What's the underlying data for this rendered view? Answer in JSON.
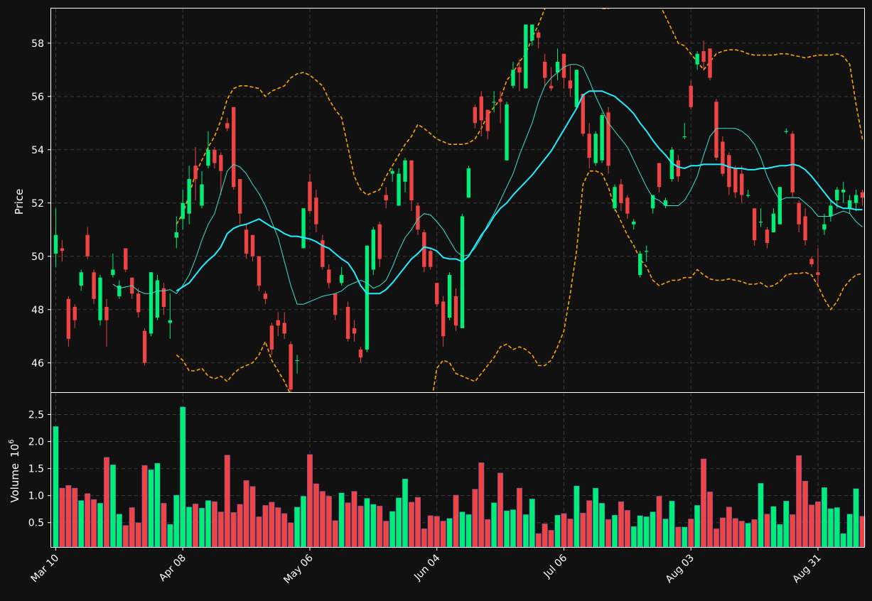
{
  "colors": {
    "background": "#111111",
    "up": "#00ee77",
    "down": "#ee4444",
    "sma_fast": "#40e0d0",
    "sma_slow": "#22eeff",
    "bollinger": "#ffa500",
    "grid": "#3a3a3a",
    "axis": "#ffffff"
  },
  "chart_data": {
    "type": "candlestick",
    "title": "",
    "price_axis": {
      "ylabel": "Price",
      "ylim": [
        44.9,
        59.3
      ],
      "yticks": [
        46,
        48,
        50,
        52,
        54,
        56,
        58
      ],
      "ytick_labels": [
        "46",
        "48",
        "50",
        "52",
        "54",
        "56",
        "58"
      ]
    },
    "volume_axis": {
      "ylabel": "Volume",
      "unit_label": "10",
      "unit_exponent": "6",
      "ylim": [
        0.05,
        2.9
      ],
      "yticks": [
        0.5,
        1.0,
        1.5,
        2.0,
        2.5
      ],
      "ytick_labels": [
        "0.5",
        "1.0",
        "1.5",
        "2.0",
        "2.5"
      ]
    },
    "x_axis": {
      "bar_count": 128,
      "tick_indices": [
        0,
        20,
        40,
        60,
        80,
        100,
        120
      ],
      "tick_labels": [
        "Mar 10",
        "Apr 08",
        "May 06",
        "Jun 04",
        "Jul 06",
        "Aug 03",
        "Aug 31"
      ]
    },
    "grid": true,
    "candles": [
      [
        50.1,
        50.8,
        51.8,
        49.6
      ],
      [
        50.3,
        50.2,
        50.6,
        49.8
      ],
      [
        48.4,
        46.9,
        48.5,
        46.6
      ],
      [
        48.1,
        47.6,
        48.2,
        47.3
      ],
      [
        48.9,
        49.4,
        49.5,
        48.7
      ],
      [
        50.8,
        50.0,
        51.1,
        49.9
      ],
      [
        49.4,
        48.4,
        49.5,
        48.2
      ],
      [
        47.6,
        49.2,
        49.3,
        47.4
      ],
      [
        48.1,
        47.6,
        48.4,
        46.6
      ],
      [
        49.3,
        49.5,
        50.1,
        49.2
      ],
      [
        48.5,
        48.9,
        49.1,
        48.4
      ],
      [
        50.3,
        49.5,
        50.3,
        49.4
      ],
      [
        49.2,
        48.6,
        49.2,
        48.4
      ],
      [
        48.6,
        47.9,
        48.8,
        47.7
      ],
      [
        47.2,
        46.0,
        47.3,
        45.9
      ],
      [
        47.1,
        49.4,
        49.4,
        47.0
      ],
      [
        47.7,
        49.1,
        49.3,
        47.6
      ],
      [
        48.8,
        48.1,
        49.0,
        47.8
      ],
      [
        47.5,
        47.6,
        48.6,
        46.9
      ],
      [
        50.7,
        50.9,
        51.5,
        50.3
      ],
      [
        51.4,
        52.0,
        52.5,
        51.0
      ],
      [
        51.6,
        52.9,
        53.4,
        51.2
      ],
      [
        53.4,
        52.9,
        54.1,
        52.1
      ],
      [
        51.9,
        52.7,
        53.2,
        51.8
      ],
      [
        53.4,
        54.0,
        54.7,
        53.3
      ],
      [
        54.0,
        53.5,
        54.1,
        53.3
      ],
      [
        53.8,
        53.2,
        53.9,
        52.3
      ],
      [
        55.0,
        54.8,
        55.2,
        54.7
      ],
      [
        55.6,
        52.6,
        55.6,
        52.5
      ],
      [
        52.9,
        51.6,
        52.9,
        51.2
      ],
      [
        51.0,
        50.1,
        51.2,
        49.9
      ],
      [
        50.8,
        50.0,
        50.8,
        49.8
      ],
      [
        50.0,
        48.9,
        50.0,
        48.7
      ],
      [
        48.6,
        48.4,
        48.7,
        48.2
      ],
      [
        47.4,
        46.5,
        47.5,
        46.3
      ],
      [
        47.6,
        47.4,
        47.9,
        47.0
      ],
      [
        47.5,
        47.1,
        47.9,
        46.9
      ],
      [
        46.7,
        45.0,
        46.8,
        44.6
      ],
      [
        46.1,
        46.1,
        46.3,
        45.6
      ],
      [
        50.3,
        51.8,
        51.8,
        50.3
      ],
      [
        52.8,
        51.7,
        53.1,
        51.6
      ],
      [
        52.2,
        51.2,
        52.5,
        50.9
      ],
      [
        50.6,
        49.6,
        50.8,
        49.5
      ],
      [
        49.5,
        49.0,
        49.7,
        48.8
      ],
      [
        48.6,
        47.8,
        48.6,
        47.6
      ],
      [
        49.0,
        49.3,
        49.6,
        48.9
      ],
      [
        48.1,
        46.9,
        48.3,
        46.8
      ],
      [
        47.3,
        47.1,
        47.6,
        46.8
      ],
      [
        46.5,
        46.2,
        46.6,
        46.0
      ],
      [
        46.5,
        50.4,
        50.4,
        46.4
      ],
      [
        49.5,
        51.0,
        51.1,
        49.3
      ],
      [
        51.2,
        49.9,
        51.3,
        49.6
      ],
      [
        52.3,
        52.1,
        52.6,
        51.8
      ],
      [
        53.1,
        53.2,
        53.3,
        52.8
      ],
      [
        51.9,
        53.1,
        53.3,
        51.9
      ],
      [
        52.8,
        53.6,
        53.7,
        52.4
      ],
      [
        53.6,
        52.1,
        53.6,
        51.7
      ],
      [
        51.9,
        51.0,
        52.0,
        50.8
      ],
      [
        50.9,
        49.6,
        51.0,
        49.4
      ],
      [
        50.2,
        49.6,
        50.3,
        49.5
      ],
      [
        49.0,
        48.2,
        49.0,
        48.1
      ],
      [
        48.3,
        47.0,
        48.5,
        46.6
      ],
      [
        47.7,
        49.3,
        49.4,
        47.6
      ],
      [
        48.5,
        47.4,
        48.8,
        47.2
      ],
      [
        47.3,
        51.5,
        51.6,
        47.3
      ],
      [
        52.2,
        53.3,
        53.4,
        52.2
      ],
      [
        55.6,
        55.0,
        55.7,
        54.8
      ],
      [
        56.0,
        55.1,
        56.2,
        54.5
      ],
      [
        55.5,
        54.7,
        55.5,
        54.4
      ],
      [
        55.8,
        55.8,
        56.2,
        55.4
      ],
      [
        55.9,
        55.8,
        56.2,
        55.0
      ],
      [
        53.6,
        55.7,
        55.8,
        53.6
      ],
      [
        56.4,
        57.0,
        57.3,
        56.3
      ],
      [
        57.1,
        56.9,
        57.4,
        56.2
      ],
      [
        56.3,
        58.7,
        58.7,
        56.3
      ],
      [
        58.1,
        58.7,
        58.7,
        57.9
      ],
      [
        58.4,
        58.2,
        58.5,
        57.8
      ],
      [
        57.3,
        56.7,
        57.6,
        56.4
      ],
      [
        56.4,
        56.3,
        57.1,
        56.2
      ],
      [
        56.9,
        57.3,
        57.8,
        56.6
      ],
      [
        57.6,
        56.7,
        57.6,
        56.3
      ],
      [
        56.6,
        56.3,
        57.2,
        56.0
      ],
      [
        55.6,
        57.0,
        57.0,
        55.5
      ],
      [
        56.1,
        54.6,
        56.1,
        54.5
      ],
      [
        54.6,
        53.7,
        55.0,
        53.3
      ],
      [
        53.5,
        54.6,
        54.7,
        53.4
      ],
      [
        53.6,
        55.3,
        55.4,
        53.5
      ],
      [
        55.4,
        53.4,
        55.6,
        53.1
      ],
      [
        51.8,
        52.6,
        52.7,
        51.7
      ],
      [
        52.7,
        52.0,
        52.9,
        51.7
      ],
      [
        52.2,
        51.6,
        52.3,
        51.4
      ],
      [
        51.2,
        51.3,
        51.4,
        51.0
      ],
      [
        49.3,
        50.1,
        50.2,
        49.2
      ],
      [
        50.2,
        50.2,
        50.4,
        49.8
      ],
      [
        51.8,
        52.3,
        52.3,
        51.6
      ],
      [
        53.5,
        52.6,
        53.5,
        52.4
      ],
      [
        51.9,
        52.1,
        52.2,
        51.8
      ],
      [
        52.9,
        54.0,
        54.1,
        52.8
      ],
      [
        53.6,
        53.0,
        53.8,
        52.8
      ],
      [
        54.5,
        54.5,
        55.0,
        54.4
      ],
      [
        56.4,
        55.6,
        56.6,
        55.5
      ],
      [
        57.2,
        57.6,
        57.7,
        57.0
      ],
      [
        57.7,
        57.3,
        58.1,
        57.0
      ],
      [
        57.8,
        56.7,
        57.8,
        56.6
      ],
      [
        55.8,
        53.7,
        55.9,
        53.6
      ],
      [
        54.3,
        53.1,
        54.5,
        53.0
      ],
      [
        53.8,
        52.6,
        53.9,
        52.3
      ],
      [
        53.3,
        52.4,
        53.4,
        52.2
      ],
      [
        53.1,
        52.3,
        53.4,
        52.0
      ],
      [
        52.3,
        52.3,
        52.5,
        52.2
      ],
      [
        51.8,
        50.6,
        51.8,
        50.4
      ],
      [
        51.3,
        51.3,
        51.8,
        51.1
      ],
      [
        51.0,
        50.5,
        51.1,
        50.3
      ],
      [
        50.9,
        51.6,
        51.8,
        50.9
      ],
      [
        51.2,
        52.6,
        52.6,
        51.2
      ],
      [
        54.7,
        54.7,
        54.8,
        54.6
      ],
      [
        54.6,
        52.4,
        54.7,
        52.2
      ],
      [
        52.0,
        51.2,
        52.1,
        50.9
      ],
      [
        51.5,
        50.6,
        51.8,
        50.4
      ],
      [
        49.9,
        49.7,
        50.0,
        49.6
      ],
      [
        49.4,
        49.3,
        50.3,
        48.9
      ],
      [
        51.0,
        51.2,
        51.6,
        50.8
      ],
      [
        51.5,
        51.9,
        52.1,
        51.3
      ],
      [
        52.1,
        52.5,
        52.6,
        51.8
      ],
      [
        52.4,
        52.5,
        52.8,
        52.0
      ],
      [
        51.8,
        52.1,
        52.3,
        51.6
      ],
      [
        52.0,
        52.3,
        52.5,
        51.7
      ],
      [
        52.4,
        52.2,
        52.5,
        51.9
      ]
    ],
    "volume": [
      2.28,
      1.14,
      1.19,
      1.14,
      0.91,
      1.04,
      0.93,
      0.86,
      1.71,
      1.57,
      0.66,
      0.45,
      0.78,
      0.5,
      1.56,
      1.48,
      1.6,
      0.86,
      0.47,
      1.01,
      2.64,
      0.79,
      0.85,
      0.77,
      0.91,
      0.89,
      0.7,
      1.75,
      0.69,
      0.84,
      1.28,
      1.17,
      0.61,
      0.82,
      0.88,
      0.78,
      0.67,
      0.5,
      0.79,
      0.99,
      1.76,
      1.22,
      1.08,
      0.99,
      0.54,
      1.05,
      0.87,
      1.08,
      0.81,
      0.95,
      0.84,
      0.81,
      0.53,
      0.71,
      0.96,
      1.31,
      0.88,
      0.97,
      0.39,
      0.63,
      0.62,
      0.53,
      0.58,
      1.01,
      0.7,
      0.65,
      1.12,
      1.61,
      0.56,
      0.87,
      1.42,
      0.72,
      0.74,
      1.14,
      0.65,
      0.94,
      0.3,
      0.48,
      0.36,
      0.64,
      0.67,
      0.57,
      1.18,
      0.68,
      0.91,
      1.14,
      0.86,
      0.56,
      0.64,
      0.89,
      0.73,
      0.43,
      0.63,
      0.61,
      0.7,
      0.99,
      0.57,
      0.9,
      0.42,
      0.42,
      0.57,
      0.82,
      1.68,
      1.07,
      0.39,
      0.59,
      0.79,
      0.58,
      0.53,
      0.49,
      0.56,
      1.23,
      0.66,
      0.8,
      0.47,
      0.9,
      0.65,
      1.74,
      1.27,
      0.83,
      0.89,
      1.15,
      0.76,
      0.78,
      0.3,
      0.66,
      1.13,
      0.62
    ],
    "sma_fast": [
      null,
      null,
      null,
      null,
      null,
      null,
      null,
      null,
      null,
      48.95,
      48.8,
      48.85,
      48.9,
      48.7,
      48.6,
      48.6,
      48.7,
      48.7,
      48.75,
      48.6,
      48.9,
      49.3,
      49.9,
      50.6,
      51.2,
      51.6,
      52.4,
      53.2,
      53.45,
      53.35,
      53.1,
      52.7,
      52.35,
      51.9,
      51.3,
      50.7,
      49.8,
      48.9,
      48.2,
      48.2,
      48.3,
      48.4,
      48.5,
      48.55,
      48.6,
      48.7,
      48.9,
      49.0,
      49.1,
      49.0,
      48.8,
      48.9,
      49.1,
      49.6,
      50.2,
      50.7,
      51.0,
      51.4,
      51.6,
      51.55,
      51.3,
      51.0,
      50.6,
      50.2,
      50.0,
      50.05,
      50.3,
      50.7,
      51.2,
      51.6,
      52.1,
      52.6,
      53.1,
      53.8,
      54.4,
      55.0,
      55.8,
      56.4,
      56.7,
      56.9,
      57.1,
      57.2,
      57.2,
      57.1,
      56.6,
      56.0,
      55.5,
      55.0,
      54.7,
      54.4,
      54.1,
      53.6,
      53.1,
      52.6,
      52.2,
      52.1,
      51.9,
      51.9,
      51.9,
      52.1,
      52.5,
      53.0,
      53.8,
      54.5,
      54.8,
      54.8,
      54.8,
      54.8,
      54.7,
      54.5,
      54.2,
      53.7,
      53.0,
      52.5,
      52.1,
      52.2,
      52.2,
      52.2,
      52.0,
      51.8,
      51.5,
      51.5,
      51.5,
      51.6,
      51.7,
      51.6,
      51.3,
      51.1
    ],
    "sma_slow": [
      null,
      null,
      null,
      null,
      null,
      null,
      null,
      null,
      null,
      null,
      null,
      null,
      null,
      null,
      null,
      null,
      null,
      null,
      null,
      48.7,
      48.85,
      49.0,
      49.3,
      49.6,
      49.85,
      50.05,
      50.35,
      50.85,
      51.05,
      51.15,
      51.2,
      51.3,
      51.4,
      51.25,
      51.1,
      51.0,
      50.85,
      50.75,
      50.75,
      50.7,
      50.65,
      50.55,
      50.4,
      50.3,
      50.1,
      49.9,
      49.75,
      49.4,
      48.9,
      48.6,
      48.6,
      48.6,
      48.75,
      49.0,
      49.3,
      49.6,
      49.9,
      50.1,
      50.35,
      50.3,
      50.2,
      49.95,
      49.9,
      49.9,
      49.8,
      50.0,
      50.4,
      50.8,
      51.1,
      51.5,
      51.8,
      52.0,
      52.3,
      52.55,
      52.8,
      53.05,
      53.35,
      53.65,
      53.95,
      54.35,
      54.75,
      55.15,
      55.55,
      56.05,
      56.2,
      56.2,
      56.2,
      56.1,
      56.0,
      55.8,
      55.6,
      55.35,
      55.0,
      54.7,
      54.35,
      54.05,
      53.8,
      53.5,
      53.35,
      53.3,
      53.4,
      53.4,
      53.45,
      53.45,
      53.45,
      53.45,
      53.35,
      53.3,
      53.3,
      53.25,
      53.25,
      53.3,
      53.3,
      53.35,
      53.4,
      53.4,
      53.45,
      53.4,
      53.25,
      53.0,
      52.7,
      52.4,
      52.1,
      51.9,
      51.8,
      51.8,
      51.75,
      51.75
    ],
    "bb_upper": [
      null,
      null,
      null,
      null,
      null,
      null,
      null,
      null,
      null,
      null,
      null,
      null,
      null,
      null,
      null,
      null,
      null,
      null,
      null,
      51.2,
      51.6,
      52.3,
      53.1,
      53.6,
      54.1,
      54.5,
      55.1,
      55.9,
      56.3,
      56.4,
      56.4,
      56.35,
      56.3,
      56.0,
      56.2,
      56.3,
      56.4,
      56.7,
      56.85,
      56.9,
      56.8,
      56.6,
      56.4,
      55.9,
      55.5,
      55.2,
      54.1,
      53.0,
      52.5,
      52.3,
      52.4,
      52.5,
      53.0,
      53.4,
      53.8,
      54.2,
      54.5,
      54.95,
      54.8,
      54.6,
      54.4,
      54.3,
      54.2,
      54.2,
      54.2,
      54.25,
      54.4,
      54.8,
      55.3,
      55.6,
      55.9,
      56.6,
      56.9,
      57.3,
      57.6,
      58.2,
      58.7,
      59.3,
      59.8,
      60.2,
      60.5,
      60.7,
      60.8,
      60.5,
      60.1,
      59.5,
      59.3,
      59.3,
      59.5,
      59.9,
      60.2,
      60.4,
      60.7,
      60.6,
      60.1,
      59.5,
      59.0,
      58.5,
      58.0,
      57.9,
      57.6,
      57.3,
      57.0,
      57.3,
      57.6,
      57.7,
      57.75,
      57.75,
      57.7,
      57.6,
      57.55,
      57.55,
      57.55,
      57.55,
      57.6,
      57.6,
      57.55,
      57.5,
      57.45,
      57.5,
      57.55,
      57.55,
      57.55,
      57.6,
      57.5,
      57.2,
      55.7,
      54.4,
      54.2,
      54.15
    ],
    "bb_lower": [
      null,
      null,
      null,
      null,
      null,
      null,
      null,
      null,
      null,
      null,
      null,
      null,
      null,
      null,
      null,
      null,
      null,
      null,
      null,
      46.3,
      46.1,
      45.7,
      45.7,
      45.8,
      45.5,
      45.4,
      45.5,
      45.3,
      45.6,
      45.8,
      45.9,
      46.0,
      46.3,
      46.8,
      46.1,
      45.7,
      45.3,
      44.8,
      44.6,
      44.5,
      44.5,
      44.6,
      44.6,
      44.6,
      44.7,
      44.6,
      44.5,
      44.2,
      43.9,
      43.5,
      43.5,
      43.4,
      43.6,
      43.9,
      44.2,
      44.4,
      44.6,
      44.6,
      44.5,
      44.3,
      45.8,
      46.1,
      46.0,
      45.6,
      45.5,
      45.4,
      45.3,
      45.6,
      45.9,
      46.2,
      46.6,
      46.7,
      46.5,
      46.6,
      46.5,
      46.3,
      45.9,
      45.9,
      46.1,
      46.6,
      47.2,
      48.6,
      50.2,
      52.7,
      53.2,
      53.2,
      53.1,
      52.6,
      51.8,
      51.3,
      50.8,
      50.4,
      49.9,
      49.6,
      49.1,
      48.9,
      49.0,
      49.1,
      49.1,
      49.2,
      49.2,
      49.5,
      49.3,
      49.15,
      49.1,
      49.1,
      49.15,
      49.1,
      49.05,
      48.95,
      48.95,
      49.0,
      48.85,
      48.9,
      49.05,
      49.3,
      49.35,
      49.35,
      49.4,
      49.3,
      48.9,
      48.4,
      48.0,
      48.3,
      48.8,
      49.1,
      49.3,
      49.35
    ]
  }
}
